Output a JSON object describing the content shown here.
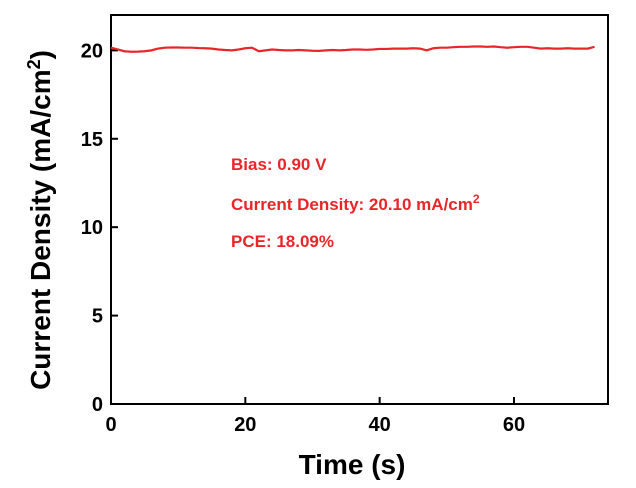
{
  "chart_data": {
    "type": "line",
    "xlabel": "Time (s)",
    "ylabel_main": "Current Density (mA/cm",
    "ylabel_sup": "2",
    "ylabel_close": ")",
    "xlim": [
      0,
      74
    ],
    "ylim": [
      0,
      22
    ],
    "x_ticks": [
      0,
      20,
      40,
      60
    ],
    "y_ticks": [
      0,
      5,
      10,
      15,
      20
    ],
    "grid": false,
    "line_color": "#e8262a",
    "series": [
      {
        "x": [
          0,
          1,
          2,
          3,
          4,
          5,
          6,
          7,
          8,
          9,
          10,
          11,
          12,
          13,
          14,
          15,
          16,
          17,
          18,
          19,
          20,
          21,
          22,
          23,
          24,
          25,
          26,
          27,
          28,
          29,
          30,
          31,
          32,
          33,
          34,
          35,
          36,
          37,
          38,
          39,
          40,
          41,
          42,
          43,
          44,
          45,
          46,
          47,
          48,
          49,
          50,
          51,
          52,
          53,
          54,
          55,
          56,
          57,
          58,
          59,
          60,
          61,
          62,
          63,
          64,
          65,
          66,
          67,
          68,
          69,
          70,
          71,
          72
        ],
        "y": [
          20.15,
          20.05,
          19.95,
          19.92,
          19.93,
          19.95,
          20.0,
          20.1,
          20.15,
          20.16,
          20.16,
          20.15,
          20.15,
          20.13,
          20.12,
          20.1,
          20.05,
          20.02,
          20.0,
          20.05,
          20.12,
          20.15,
          19.95,
          20.0,
          20.05,
          20.02,
          20.0,
          20.0,
          20.02,
          20.0,
          19.98,
          19.97,
          20.0,
          20.02,
          20.0,
          20.02,
          20.05,
          20.05,
          20.03,
          20.05,
          20.08,
          20.08,
          20.1,
          20.1,
          20.1,
          20.12,
          20.1,
          20.0,
          20.12,
          20.15,
          20.15,
          20.18,
          20.2,
          20.2,
          20.22,
          20.22,
          20.2,
          20.22,
          20.18,
          20.15,
          20.18,
          20.2,
          20.2,
          20.15,
          20.1,
          20.12,
          20.1,
          20.1,
          20.12,
          20.1,
          20.1,
          20.1,
          20.2
        ]
      }
    ],
    "annotations": [
      {
        "text": "Bias: 0.90 V"
      },
      {
        "text": "Current Density: 20.10 mA/cm",
        "sup": "2"
      },
      {
        "text": "PCE: 18.09%"
      }
    ]
  }
}
